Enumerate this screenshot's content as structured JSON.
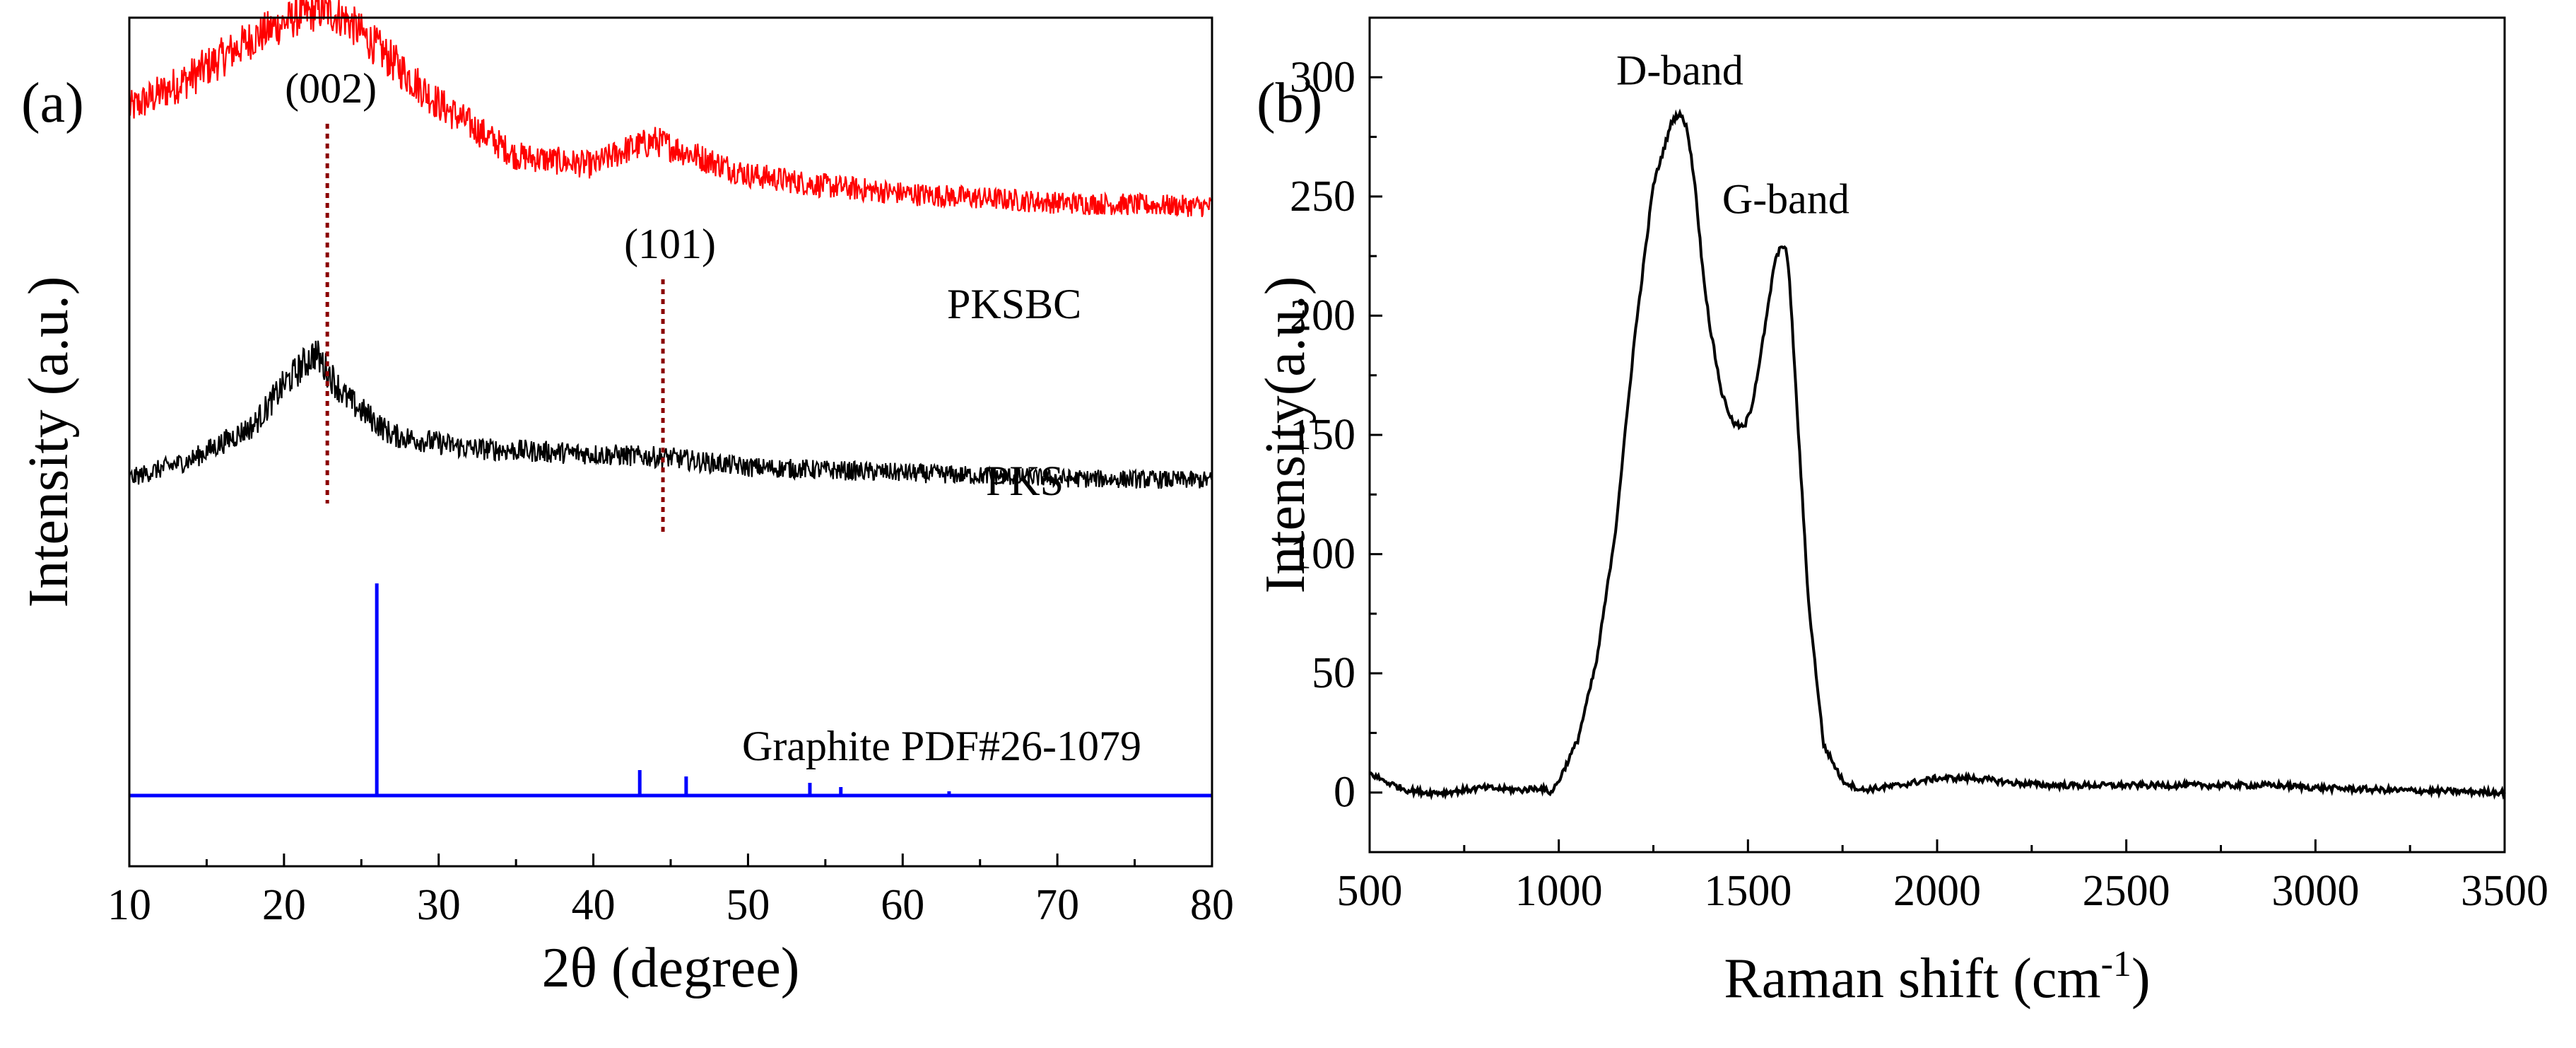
{
  "chart_data": [
    {
      "panel_label": "(a)",
      "type": "line",
      "xlabel": "2θ (degree)",
      "ylabel": "Intensity (a.u.)",
      "xlim": [
        10,
        80
      ],
      "xticks": [
        "10",
        "20",
        "30",
        "40",
        "50",
        "60",
        "70",
        "80"
      ],
      "y_ticks_shown": false,
      "series": [
        {
          "name": "PKSBC",
          "color": "#ff0000",
          "noise": 0.11,
          "x": [
            10,
            14,
            18,
            21,
            22.5,
            24,
            26,
            30,
            35,
            40,
            42,
            44,
            46,
            50,
            55,
            60,
            70,
            80
          ],
          "y": [
            0.55,
            0.72,
            0.93,
            1.05,
            1.08,
            1.03,
            0.88,
            0.58,
            0.3,
            0.25,
            0.33,
            0.38,
            0.32,
            0.2,
            0.14,
            0.1,
            0.05,
            0.03
          ]
        },
        {
          "name": "PKS",
          "color": "#000000",
          "noise": 0.11,
          "x": [
            10,
            14,
            18,
            20,
            22,
            24,
            27,
            32,
            40,
            45,
            50,
            60,
            70,
            80
          ],
          "y": [
            -0.1,
            0.0,
            0.18,
            0.4,
            0.57,
            0.33,
            0.13,
            0.06,
            0.03,
            0.01,
            -0.04,
            -0.07,
            -0.1,
            -0.11
          ]
        }
      ],
      "reference": {
        "name": "Graphite PDF#26-1079",
        "color": "#0000ff",
        "sticks": [
          {
            "x": 26.0,
            "h": 1.0
          },
          {
            "x": 43.0,
            "h": 0.12
          },
          {
            "x": 46.0,
            "h": 0.09
          },
          {
            "x": 54.0,
            "h": 0.06
          },
          {
            "x": 56.0,
            "h": 0.04
          },
          {
            "x": 63.0,
            "h": 0.02
          }
        ]
      },
      "peak_markers": [
        {
          "label": "(002)",
          "x": 22.8,
          "color": "#8b0000"
        },
        {
          "label": "(101)",
          "x": 44.5,
          "color": "#8b0000"
        }
      ]
    },
    {
      "panel_label": "(b)",
      "type": "line",
      "xlabel": "Raman shift (cm",
      "xlabel_sup": "-1",
      "xlabel_end": ")",
      "ylabel": "Intensity(a.u.)",
      "xlim": [
        500,
        3500
      ],
      "ylim": [
        -25,
        325
      ],
      "xticks": [
        "500",
        "1000",
        "1500",
        "2000",
        "2500",
        "3000",
        "3500"
      ],
      "yticks": [
        "0",
        "50",
        "100",
        "150",
        "200",
        "250",
        "300"
      ],
      "series": [
        {
          "name": "Raman",
          "color": "#000000",
          "x": [
            500,
            550,
            600,
            650,
            700,
            800,
            900,
            950,
            980,
            1000,
            1050,
            1100,
            1150,
            1200,
            1250,
            1300,
            1320,
            1340,
            1360,
            1380,
            1400,
            1430,
            1460,
            1490,
            1510,
            1530,
            1550,
            1570,
            1590,
            1600,
            1610,
            1630,
            1660,
            1700,
            1750,
            1800,
            1900,
            2000,
            2100,
            2200,
            2300,
            2500,
            2700,
            2900,
            3000,
            3200,
            3500
          ],
          "y": [
            8,
            4,
            1,
            0,
            0,
            2,
            1,
            2,
            0,
            5,
            22,
            55,
            110,
            190,
            255,
            282,
            285,
            278,
            255,
            220,
            195,
            168,
            155,
            153,
            162,
            180,
            200,
            222,
            230,
            228,
            215,
            160,
            80,
            20,
            5,
            1,
            3,
            6,
            6,
            4,
            3,
            3,
            3,
            3,
            2,
            1,
            0
          ]
        }
      ],
      "annotations": [
        {
          "label": "D-band",
          "x": 1320,
          "y": 297
        },
        {
          "label": "G-band",
          "x": 1600,
          "y": 243
        }
      ]
    }
  ]
}
